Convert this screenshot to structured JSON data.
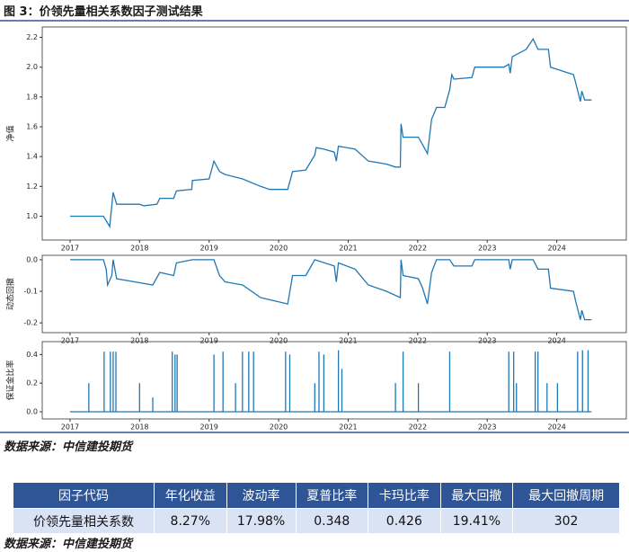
{
  "title": "图 3：价领先量相关系数因子测试结果",
  "chart_data": [
    {
      "type": "line",
      "ylabel": "净值",
      "color": "#1f77b4",
      "x": [
        2017.0,
        2017.48,
        2017.52,
        2017.57,
        2017.62,
        2017.67,
        2018.0,
        2018.06,
        2018.25,
        2018.29,
        2018.49,
        2018.53,
        2018.75,
        2018.76,
        2019.0,
        2019.07,
        2019.15,
        2019.23,
        2019.48,
        2019.74,
        2019.87,
        2020.13,
        2020.2,
        2020.39,
        2020.52,
        2020.54,
        2020.65,
        2020.8,
        2020.83,
        2020.86,
        2021.1,
        2021.29,
        2021.55,
        2021.68,
        2021.75,
        2021.76,
        2021.79,
        2022.01,
        2022.07,
        2022.14,
        2022.2,
        2022.27,
        2022.39,
        2022.46,
        2022.49,
        2022.52,
        2022.78,
        2022.82,
        2023.24,
        2023.31,
        2023.33,
        2023.36,
        2023.56,
        2023.66,
        2023.73,
        2023.88,
        2023.91,
        2024.24,
        2024.27,
        2024.34,
        2024.36,
        2024.4,
        2024.5
      ],
      "values": [
        1.0,
        1.0,
        0.97,
        0.93,
        1.16,
        1.08,
        1.08,
        1.07,
        1.08,
        1.12,
        1.12,
        1.17,
        1.18,
        1.24,
        1.25,
        1.37,
        1.3,
        1.28,
        1.25,
        1.2,
        1.18,
        1.18,
        1.3,
        1.31,
        1.41,
        1.46,
        1.45,
        1.43,
        1.37,
        1.47,
        1.45,
        1.37,
        1.35,
        1.33,
        1.33,
        1.62,
        1.53,
        1.53,
        1.48,
        1.42,
        1.65,
        1.73,
        1.73,
        1.85,
        1.95,
        1.92,
        1.93,
        2.0,
        2.0,
        2.02,
        1.96,
        2.07,
        2.12,
        2.19,
        2.12,
        2.12,
        2.0,
        1.95,
        1.9,
        1.77,
        1.84,
        1.78,
        1.78
      ],
      "xlim": [
        2016.6,
        2025.0
      ],
      "xticks": [
        2017,
        2018,
        2019,
        2020,
        2021,
        2022,
        2023,
        2024
      ],
      "ylim": [
        0.84,
        2.27
      ],
      "yticks": [
        {
          "value": 1,
          "label": "1.0"
        },
        1.2,
        1.4,
        1.6,
        1.8,
        {
          "value": 2,
          "label": "2.0"
        },
        2.2
      ]
    },
    {
      "type": "line",
      "ylabel": "动态回撤",
      "color": "#1f77b4",
      "x": [
        2017.0,
        2017.48,
        2017.52,
        2017.54,
        2017.6,
        2017.62,
        2017.67,
        2017.93,
        2018.19,
        2018.29,
        2018.49,
        2018.53,
        2018.76,
        2019.07,
        2019.15,
        2019.23,
        2019.48,
        2019.74,
        2020.13,
        2020.2,
        2020.39,
        2020.52,
        2020.8,
        2020.83,
        2020.86,
        2021.1,
        2021.29,
        2021.55,
        2021.75,
        2021.76,
        2021.79,
        2022.01,
        2022.07,
        2022.14,
        2022.2,
        2022.27,
        2022.46,
        2022.52,
        2022.78,
        2022.82,
        2023.31,
        2023.33,
        2023.36,
        2023.66,
        2023.73,
        2023.88,
        2023.91,
        2024.24,
        2024.27,
        2024.34,
        2024.36,
        2024.4,
        2024.5
      ],
      "values": [
        0,
        0,
        -0.03,
        -0.08,
        -0.05,
        0,
        -0.06,
        -0.07,
        -0.08,
        -0.04,
        -0.05,
        -0.01,
        0,
        0,
        -0.05,
        -0.07,
        -0.08,
        -0.12,
        -0.14,
        -0.05,
        -0.05,
        0,
        -0.02,
        -0.07,
        -0.01,
        -0.03,
        -0.08,
        -0.1,
        -0.12,
        0,
        -0.05,
        -0.06,
        -0.09,
        -0.14,
        -0.04,
        0,
        0,
        -0.02,
        -0.02,
        0,
        0,
        -0.03,
        0,
        0,
        -0.03,
        -0.03,
        -0.09,
        -0.1,
        -0.13,
        -0.19,
        -0.16,
        -0.19,
        -0.19
      ],
      "xlim": [
        2016.6,
        2025.0
      ],
      "xticks": [
        2017,
        2018,
        2019,
        2020,
        2021,
        2022,
        2023,
        2024
      ],
      "ylim": [
        -0.231,
        0.014
      ],
      "yticks": [
        {
          "value": 0,
          "label": "0.0"
        },
        -0.1,
        -0.2
      ]
    },
    {
      "type": "spike",
      "ylabel": "保证金比率",
      "color": "#1f77b4",
      "x": [
        2017.0,
        2017.27,
        2017.49,
        2017.58,
        2017.62,
        2017.66,
        2018.0,
        2018.19,
        2018.47,
        2018.51,
        2018.54,
        2019.07,
        2019.2,
        2019.38,
        2019.48,
        2019.57,
        2019.64,
        2020.1,
        2020.16,
        2020.52,
        2020.58,
        2020.65,
        2020.86,
        2020.91,
        2021.68,
        2021.79,
        2022.01,
        2022.46,
        2023.31,
        2023.38,
        2023.42,
        2023.69,
        2023.73,
        2023.86,
        2024.01,
        2024.3,
        2024.37,
        2024.45,
        2024.5
      ],
      "values": [
        0,
        0.2,
        0.42,
        0.42,
        0.42,
        0.42,
        0.2,
        0.1,
        0.42,
        0.4,
        0.4,
        0.4,
        0.42,
        0.2,
        0.42,
        0.42,
        0.42,
        0.42,
        0.4,
        0.2,
        0.42,
        0.4,
        0.43,
        0.3,
        0.2,
        0.42,
        0.2,
        0.42,
        0.42,
        0.42,
        0.2,
        0.42,
        0.42,
        0.2,
        0.2,
        0.42,
        0.43,
        0.43,
        0
      ],
      "xlim": [
        2016.6,
        2025.0
      ],
      "xticks": [
        2017,
        2018,
        2019,
        2020,
        2021,
        2022,
        2023,
        2024
      ],
      "ylim": [
        -0.05,
        0.49
      ],
      "yticks": [
        {
          "value": 0,
          "label": "0.0"
        },
        0.2,
        0.4
      ]
    }
  ],
  "source_1": "数据来源：中信建投期货",
  "table": {
    "header": [
      "因子代码",
      "年化收益",
      "波动率",
      "夏普比率",
      "卡玛比率",
      "最大回撤",
      "最大回撤周期"
    ],
    "rows": [
      [
        "价领先量相关系数",
        "8.27%",
        "17.98%",
        "0.348",
        "0.426",
        "19.41%",
        "302"
      ]
    ]
  },
  "source_2": "数据来源：中信建投期货"
}
